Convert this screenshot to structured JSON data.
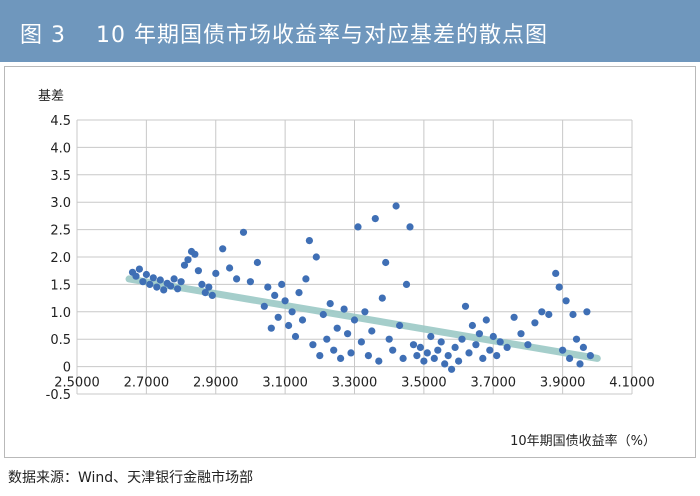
{
  "figure": {
    "number": "图 3",
    "title": "10 年期国债市场收益率与对应基差的散点图"
  },
  "source": "数据来源：Wind、天津银行金融市场部",
  "colors": {
    "header_bg": "#6f97bd",
    "points": "#3f6fb5",
    "trendline": "#9cc9c6",
    "grid": "#c8c8c8"
  },
  "chart_data": {
    "type": "scatter",
    "ylabel": "基差",
    "xlabel": "10年期国债收益率（%）",
    "xlim": [
      2.5,
      4.1
    ],
    "ylim": [
      -0.5,
      4.5
    ],
    "x_ticks": [
      "2.5000",
      "2.7000",
      "2.9000",
      "3.1000",
      "3.3000",
      "3.5000",
      "3.7000",
      "3.9000",
      "4.1000"
    ],
    "y_ticks": [
      "-0.5",
      "0",
      "0.5",
      "1.0",
      "1.5",
      "2.0",
      "2.5",
      "3.0",
      "3.5",
      "4.0",
      "4.5"
    ],
    "grid": true,
    "trendline": {
      "x": [
        2.65,
        4.0
      ],
      "y": [
        1.6,
        0.15
      ]
    },
    "points": [
      [
        2.66,
        1.72
      ],
      [
        2.67,
        1.65
      ],
      [
        2.68,
        1.78
      ],
      [
        2.69,
        1.55
      ],
      [
        2.7,
        1.68
      ],
      [
        2.71,
        1.5
      ],
      [
        2.72,
        1.62
      ],
      [
        2.73,
        1.45
      ],
      [
        2.74,
        1.58
      ],
      [
        2.75,
        1.4
      ],
      [
        2.76,
        1.52
      ],
      [
        2.77,
        1.47
      ],
      [
        2.78,
        1.6
      ],
      [
        2.79,
        1.42
      ],
      [
        2.8,
        1.55
      ],
      [
        2.81,
        1.85
      ],
      [
        2.82,
        1.95
      ],
      [
        2.83,
        2.1
      ],
      [
        2.84,
        2.05
      ],
      [
        2.85,
        1.75
      ],
      [
        2.86,
        1.5
      ],
      [
        2.87,
        1.35
      ],
      [
        2.88,
        1.45
      ],
      [
        2.89,
        1.3
      ],
      [
        2.9,
        1.7
      ],
      [
        2.92,
        2.15
      ],
      [
        2.94,
        1.8
      ],
      [
        2.96,
        1.6
      ],
      [
        2.98,
        2.45
      ],
      [
        3.0,
        1.55
      ],
      [
        3.02,
        1.9
      ],
      [
        3.04,
        1.1
      ],
      [
        3.05,
        1.45
      ],
      [
        3.06,
        0.7
      ],
      [
        3.07,
        1.3
      ],
      [
        3.08,
        0.9
      ],
      [
        3.09,
        1.5
      ],
      [
        3.1,
        1.2
      ],
      [
        3.11,
        0.75
      ],
      [
        3.12,
        1.0
      ],
      [
        3.13,
        0.55
      ],
      [
        3.14,
        1.35
      ],
      [
        3.15,
        0.85
      ],
      [
        3.16,
        1.6
      ],
      [
        3.17,
        2.3
      ],
      [
        3.18,
        0.4
      ],
      [
        3.19,
        2.0
      ],
      [
        3.2,
        0.2
      ],
      [
        3.21,
        0.95
      ],
      [
        3.22,
        0.5
      ],
      [
        3.23,
        1.15
      ],
      [
        3.24,
        0.3
      ],
      [
        3.25,
        0.7
      ],
      [
        3.26,
        0.15
      ],
      [
        3.27,
        1.05
      ],
      [
        3.28,
        0.6
      ],
      [
        3.29,
        0.25
      ],
      [
        3.3,
        0.85
      ],
      [
        3.31,
        2.55
      ],
      [
        3.32,
        0.45
      ],
      [
        3.33,
        1.0
      ],
      [
        3.34,
        0.2
      ],
      [
        3.35,
        0.65
      ],
      [
        3.36,
        2.7
      ],
      [
        3.37,
        0.1
      ],
      [
        3.38,
        1.25
      ],
      [
        3.39,
        1.9
      ],
      [
        3.4,
        0.5
      ],
      [
        3.41,
        0.3
      ],
      [
        3.42,
        2.93
      ],
      [
        3.43,
        0.75
      ],
      [
        3.44,
        0.15
      ],
      [
        3.45,
        1.5
      ],
      [
        3.46,
        2.55
      ],
      [
        3.47,
        0.4
      ],
      [
        3.48,
        0.2
      ],
      [
        3.49,
        0.35
      ],
      [
        3.5,
        0.1
      ],
      [
        3.51,
        0.25
      ],
      [
        3.52,
        0.55
      ],
      [
        3.53,
        0.15
      ],
      [
        3.54,
        0.3
      ],
      [
        3.55,
        0.45
      ],
      [
        3.56,
        0.05
      ],
      [
        3.57,
        0.2
      ],
      [
        3.58,
        -0.05
      ],
      [
        3.59,
        0.35
      ],
      [
        3.6,
        0.1
      ],
      [
        3.61,
        0.5
      ],
      [
        3.62,
        1.1
      ],
      [
        3.63,
        0.25
      ],
      [
        3.64,
        0.75
      ],
      [
        3.65,
        0.4
      ],
      [
        3.66,
        0.6
      ],
      [
        3.67,
        0.15
      ],
      [
        3.68,
        0.85
      ],
      [
        3.69,
        0.3
      ],
      [
        3.7,
        0.55
      ],
      [
        3.71,
        0.2
      ],
      [
        3.72,
        0.45
      ],
      [
        3.74,
        0.35
      ],
      [
        3.76,
        0.9
      ],
      [
        3.78,
        0.6
      ],
      [
        3.8,
        0.4
      ],
      [
        3.82,
        0.8
      ],
      [
        3.84,
        1.0
      ],
      [
        3.86,
        0.95
      ],
      [
        3.88,
        1.7
      ],
      [
        3.89,
        1.45
      ],
      [
        3.9,
        0.3
      ],
      [
        3.91,
        1.2
      ],
      [
        3.92,
        0.15
      ],
      [
        3.93,
        0.95
      ],
      [
        3.94,
        0.5
      ],
      [
        3.95,
        0.05
      ],
      [
        3.96,
        0.35
      ],
      [
        3.97,
        1.0
      ],
      [
        3.98,
        0.2
      ]
    ]
  }
}
